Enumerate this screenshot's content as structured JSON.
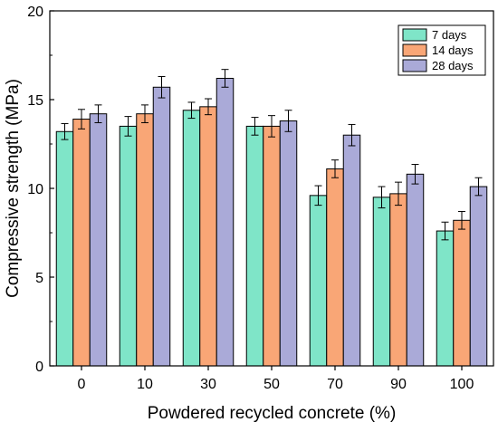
{
  "colors": {
    "7 days": "#7fe5c8",
    "14 days": "#f9a676",
    "28 days": "#aaaad8",
    "axis": "#000000",
    "bar_edge": "#000000"
  },
  "chart_data": {
    "type": "bar",
    "xlabel": "Powdered recycled concrete (%)",
    "ylabel": "Compressive strength (MPa)",
    "ylim": [
      0,
      20
    ],
    "yticks": [
      0,
      5,
      10,
      15,
      20
    ],
    "categories": [
      "0",
      "10",
      "30",
      "50",
      "70",
      "90",
      "100"
    ],
    "legend_position": "top-right",
    "grid": false,
    "error_bars": true,
    "series": [
      {
        "name": "7 days",
        "values": [
          13.2,
          13.5,
          14.4,
          13.5,
          9.6,
          9.5,
          7.6
        ],
        "errors": [
          0.45,
          0.55,
          0.45,
          0.5,
          0.55,
          0.6,
          0.5
        ]
      },
      {
        "name": "14 days",
        "values": [
          13.9,
          14.2,
          14.6,
          13.5,
          11.1,
          9.7,
          8.2
        ],
        "errors": [
          0.55,
          0.5,
          0.45,
          0.6,
          0.5,
          0.65,
          0.5
        ]
      },
      {
        "name": "28 days",
        "values": [
          14.2,
          15.7,
          16.2,
          13.8,
          13.0,
          10.8,
          10.1
        ],
        "errors": [
          0.5,
          0.6,
          0.5,
          0.6,
          0.6,
          0.55,
          0.5
        ]
      }
    ]
  }
}
